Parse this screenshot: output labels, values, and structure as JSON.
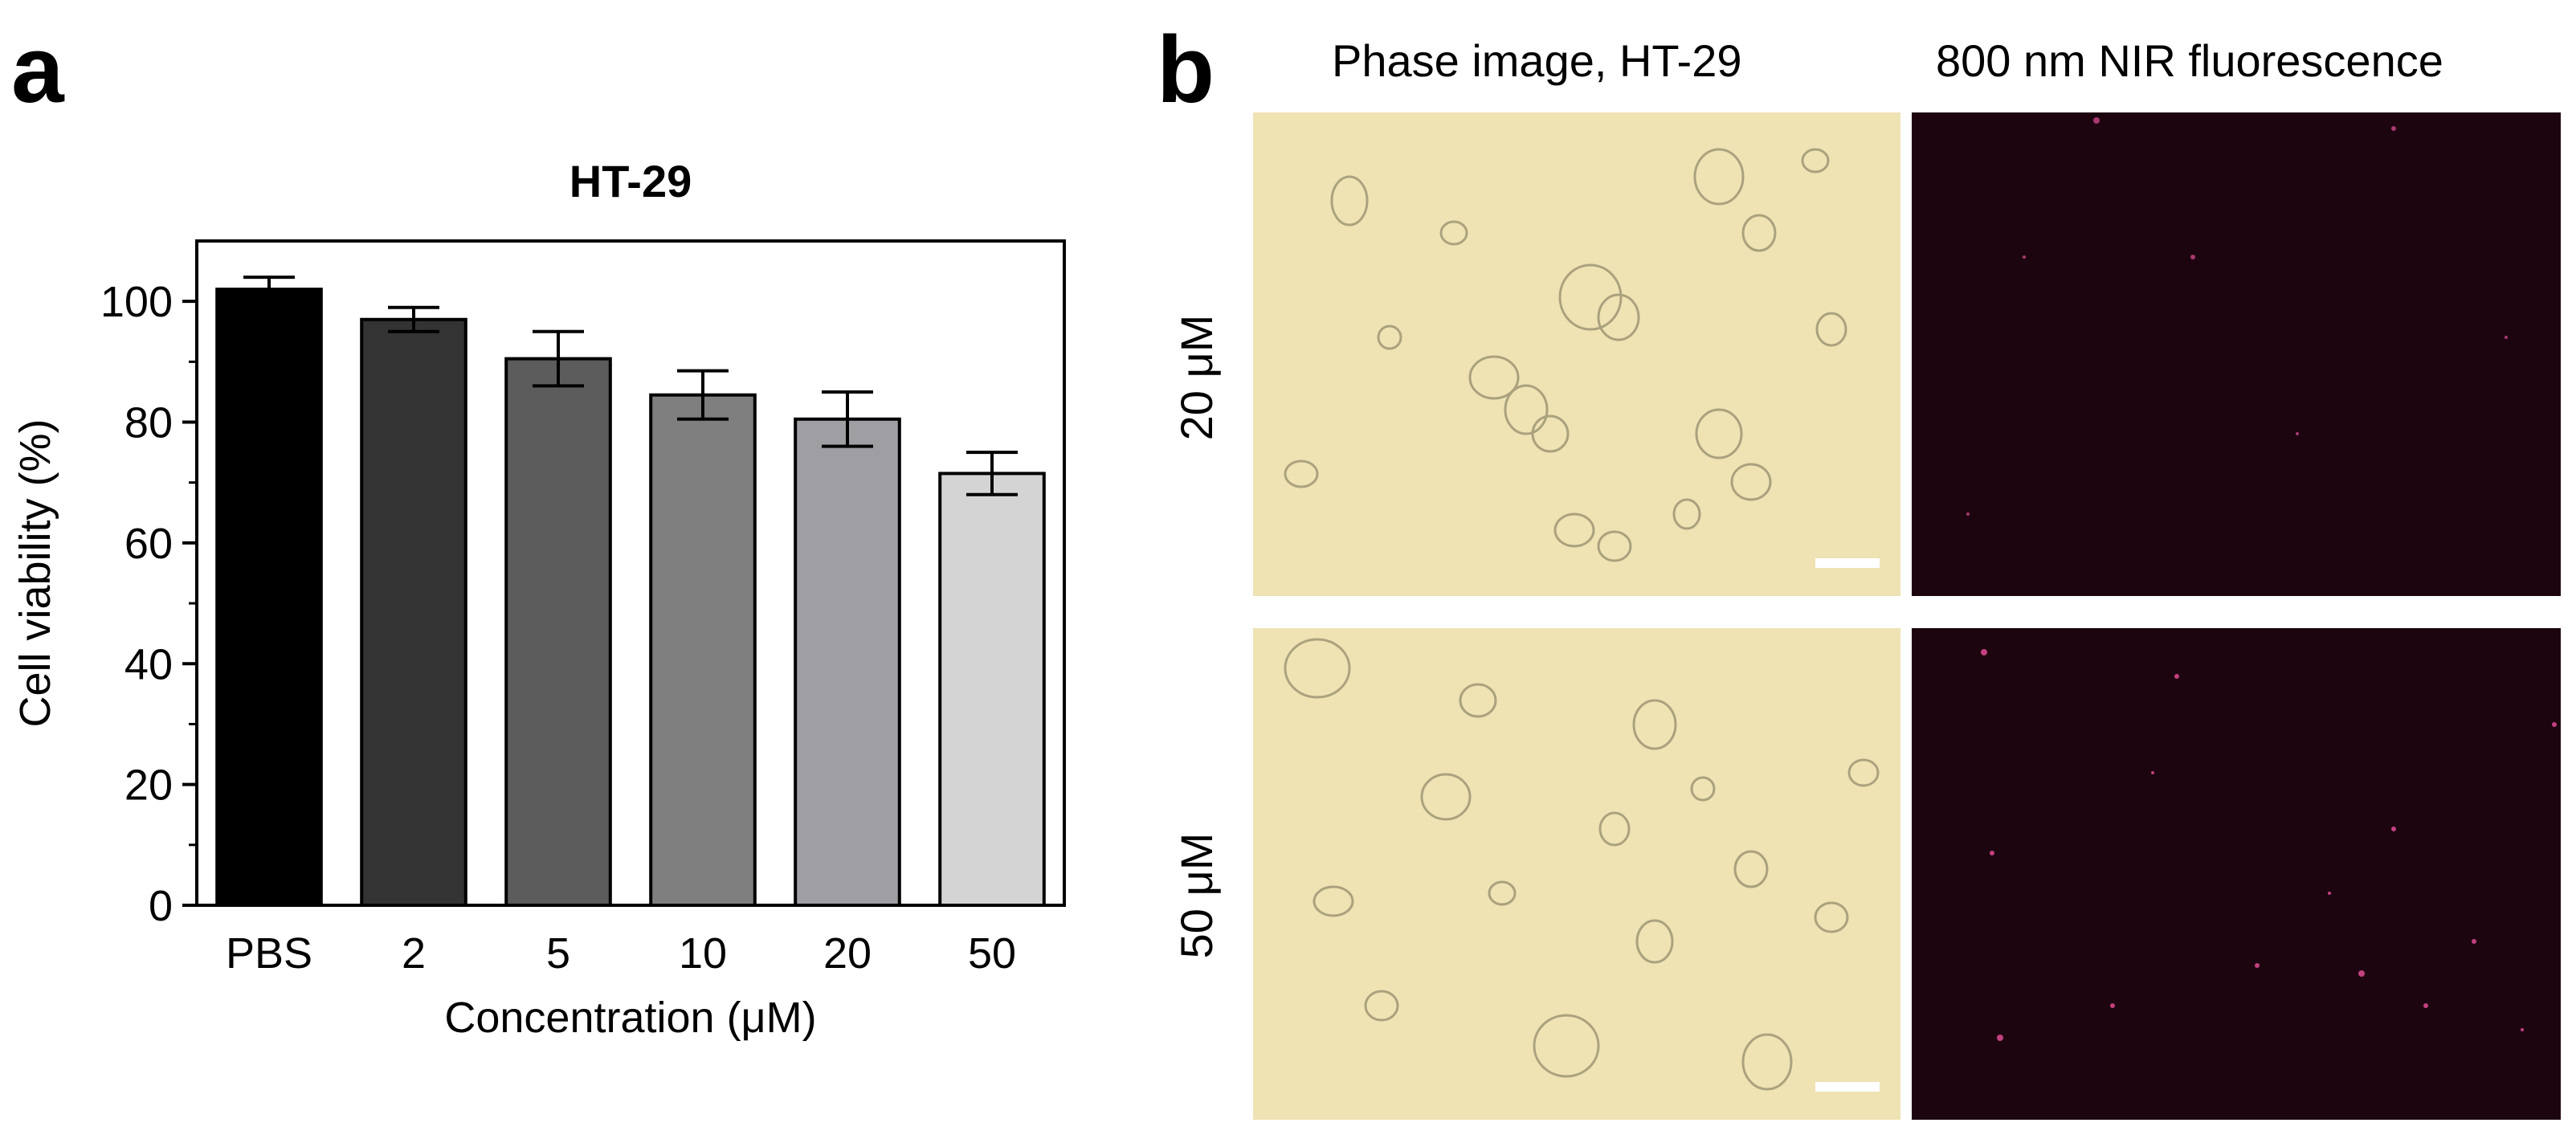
{
  "panel_a": {
    "letter": "a",
    "chart_data": {
      "type": "bar",
      "title": "HT-29",
      "xlabel": "Concentration (μM)",
      "ylabel": "Cell viability (%)",
      "categories": [
        "PBS",
        "2",
        "5",
        "10",
        "20",
        "50"
      ],
      "values": [
        102,
        97,
        90.5,
        84.5,
        80.5,
        71.5
      ],
      "errors": [
        2,
        2,
        4.5,
        4,
        4.5,
        3.5
      ],
      "bar_colors": [
        "#000000",
        "#333333",
        "#5c5c5c",
        "#7f7f7f",
        "#9f9fa3",
        "#d4d4d4"
      ],
      "ylim": [
        0,
        110
      ],
      "yticks": [
        0,
        20,
        40,
        60,
        80,
        100
      ],
      "grid": false
    }
  },
  "panel_b": {
    "letter": "b",
    "column_titles": [
      "Phase image, HT-29",
      "800 nm NIR fluorescence"
    ],
    "row_labels": [
      "20 μM",
      "50 μM"
    ],
    "colors": {
      "phase_background": "#efe2b3",
      "fluorescence_background": "#1d0510",
      "scale_bar": "#ffffff"
    }
  }
}
